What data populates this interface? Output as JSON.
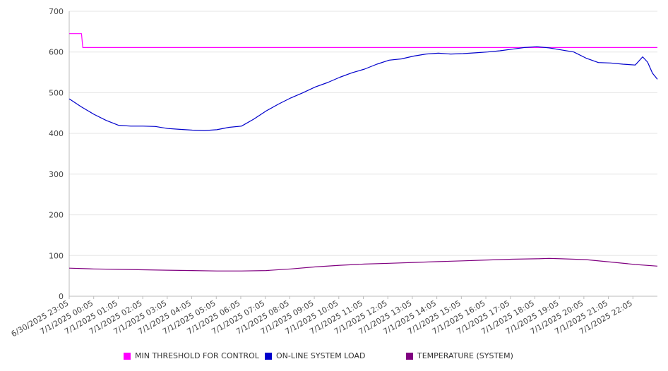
{
  "chart_data": {
    "type": "line",
    "title": "",
    "xlabel": "",
    "ylabel": "",
    "ylim": [
      0,
      700
    ],
    "yticks": [
      0,
      100,
      200,
      300,
      400,
      500,
      600,
      700
    ],
    "grid": true,
    "legend_position": "bottom",
    "x_tick_labels": [
      "6/30/2025 23:05",
      "7/1/2025 00:05",
      "7/1/2025 01:05",
      "7/1/2025 02:05",
      "7/1/2025 03:05",
      "7/1/2025 04:05",
      "7/1/2025 05:05",
      "7/1/2025 06:05",
      "7/1/2025 07:05",
      "7/1/2025 08:05",
      "7/1/2025 09:05",
      "7/1/2025 10:05",
      "7/1/2025 11:05",
      "7/1/2025 12:05",
      "7/1/2025 13:05",
      "7/1/2025 14:05",
      "7/1/2025 15:05",
      "7/1/2025 16:05",
      "7/1/2025 17:05",
      "7/1/2025 18:05",
      "7/1/2025 19:05",
      "7/1/2025 20:05",
      "7/1/2025 21:05",
      "7/1/2025 22:05"
    ],
    "x_hours": [
      0,
      0.25,
      0.5,
      0.51,
      1,
      2,
      3,
      4,
      5,
      6,
      7,
      8,
      9,
      10,
      11,
      12,
      13,
      14,
      15,
      16,
      17,
      18,
      19,
      20,
      21,
      22,
      23,
      23.9
    ],
    "series": [
      {
        "name": "MIN THRESHOLD FOR CONTROL",
        "color": "#ff00ff",
        "points": [
          [
            0,
            645
          ],
          [
            0.5,
            645
          ],
          [
            0.55,
            611
          ],
          [
            23.9,
            611
          ]
        ]
      },
      {
        "name": "ON-LINE SYSTEM LOAD",
        "color": "#0000cc",
        "points": [
          [
            0,
            485
          ],
          [
            0.5,
            465
          ],
          [
            1,
            447
          ],
          [
            1.5,
            432
          ],
          [
            2,
            420
          ],
          [
            2.5,
            418
          ],
          [
            3,
            418
          ],
          [
            3.5,
            417
          ],
          [
            4,
            412
          ],
          [
            4.5,
            410
          ],
          [
            5,
            408
          ],
          [
            5.5,
            407
          ],
          [
            6,
            409
          ],
          [
            6.5,
            415
          ],
          [
            7,
            418
          ],
          [
            7.5,
            435
          ],
          [
            8,
            455
          ],
          [
            8.5,
            472
          ],
          [
            9,
            487
          ],
          [
            9.5,
            500
          ],
          [
            10,
            514
          ],
          [
            10.5,
            525
          ],
          [
            11,
            538
          ],
          [
            11.5,
            549
          ],
          [
            12,
            558
          ],
          [
            12.5,
            570
          ],
          [
            13,
            580
          ],
          [
            13.5,
            583
          ],
          [
            14,
            590
          ],
          [
            14.5,
            595
          ],
          [
            15,
            597
          ],
          [
            15.5,
            595
          ],
          [
            16,
            596
          ],
          [
            16.5,
            598
          ],
          [
            17,
            600
          ],
          [
            17.5,
            603
          ],
          [
            18,
            607
          ],
          [
            18.5,
            611
          ],
          [
            19,
            613
          ],
          [
            19.5,
            610
          ],
          [
            20,
            605
          ],
          [
            20.5,
            600
          ],
          [
            21,
            585
          ],
          [
            21.5,
            574
          ],
          [
            22,
            573
          ],
          [
            22.5,
            570
          ],
          [
            23,
            568
          ],
          [
            23.3,
            588
          ],
          [
            23.5,
            575
          ],
          [
            23.7,
            548
          ],
          [
            23.9,
            533
          ]
        ]
      },
      {
        "name": "TEMPERATURE (SYSTEM)",
        "color": "#800080",
        "points": [
          [
            0,
            69
          ],
          [
            1,
            67
          ],
          [
            2,
            66
          ],
          [
            3,
            65
          ],
          [
            4,
            64
          ],
          [
            5,
            63
          ],
          [
            6,
            62
          ],
          [
            7,
            62
          ],
          [
            8,
            63
          ],
          [
            9,
            67
          ],
          [
            10,
            72
          ],
          [
            11,
            76
          ],
          [
            12,
            79
          ],
          [
            13,
            81
          ],
          [
            14,
            83
          ],
          [
            15,
            85
          ],
          [
            16,
            87
          ],
          [
            17,
            89
          ],
          [
            18,
            91
          ],
          [
            19,
            92
          ],
          [
            19.5,
            93
          ],
          [
            20,
            92
          ],
          [
            21,
            90
          ],
          [
            22,
            84
          ],
          [
            23,
            78
          ],
          [
            23.9,
            74
          ]
        ]
      }
    ]
  }
}
